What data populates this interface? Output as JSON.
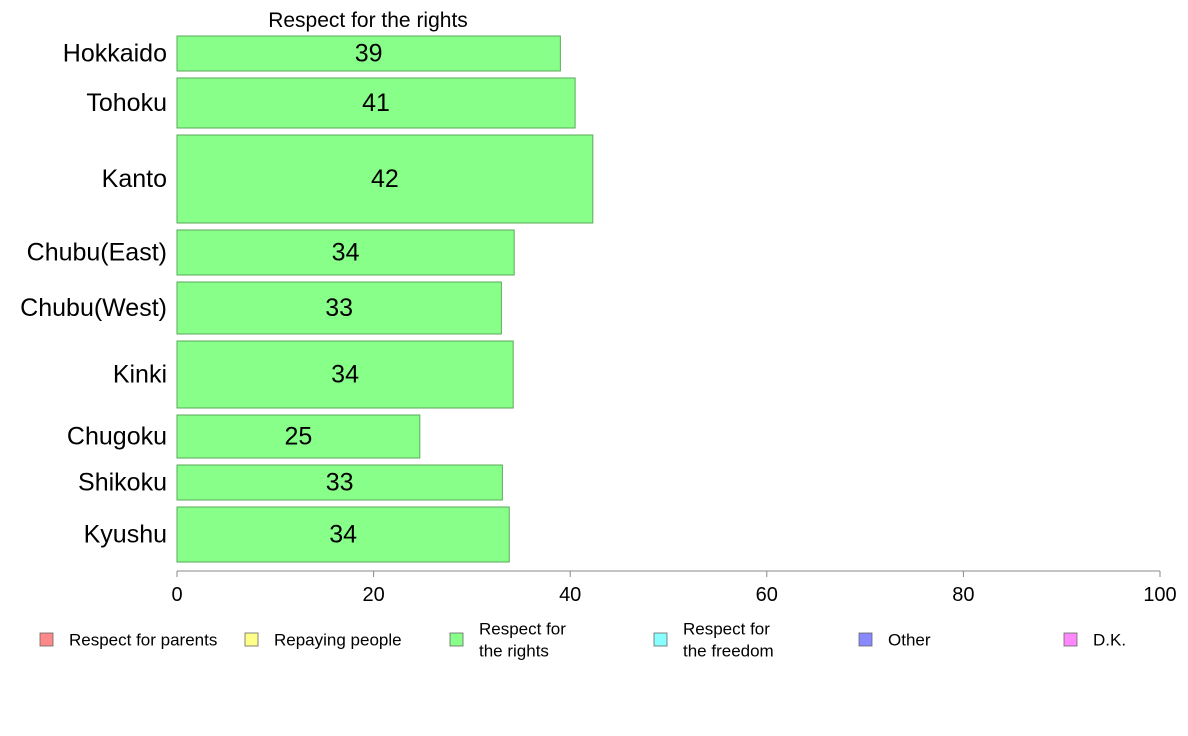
{
  "chart_data": {
    "type": "bar",
    "orientation": "horizontal",
    "title": "Respect for the rights",
    "categories": [
      "Hokkaido",
      "Tohoku",
      "Kanto",
      "Chubu(East)",
      "Chubu(West)",
      "Kinki",
      "Chugoku",
      "Shikoku",
      "Kyushu"
    ],
    "values": [
      39,
      40.5,
      42.3,
      34.3,
      33,
      34.2,
      24.7,
      33.1,
      33.8
    ],
    "value_labels": [
      "39",
      "41",
      "42",
      "34",
      "33",
      "34",
      "25",
      "33",
      "34"
    ],
    "bar_thickness": [
      35,
      50,
      88,
      45,
      52,
      67,
      43,
      35,
      55
    ],
    "xlim": [
      0,
      100
    ],
    "xticks": [
      0,
      20,
      40,
      60,
      80,
      100
    ],
    "xlabel": "",
    "ylabel": "",
    "grid": false,
    "bar_color": "#88ff88",
    "bar_edge_color": "#5aaa5a",
    "legend": {
      "position": "bottom",
      "items": [
        {
          "label": [
            "Respect for parents"
          ],
          "color": "#ff8888"
        },
        {
          "label": [
            "Repaying people"
          ],
          "color": "#ffff88"
        },
        {
          "label": [
            "Respect for",
            "the rights"
          ],
          "color": "#88ff88"
        },
        {
          "label": [
            "Respect for",
            "the freedom"
          ],
          "color": "#88ffff"
        },
        {
          "label": [
            "Other"
          ],
          "color": "#8888ff"
        },
        {
          "label": [
            "D.K."
          ],
          "color": "#ff88ff"
        }
      ]
    }
  }
}
